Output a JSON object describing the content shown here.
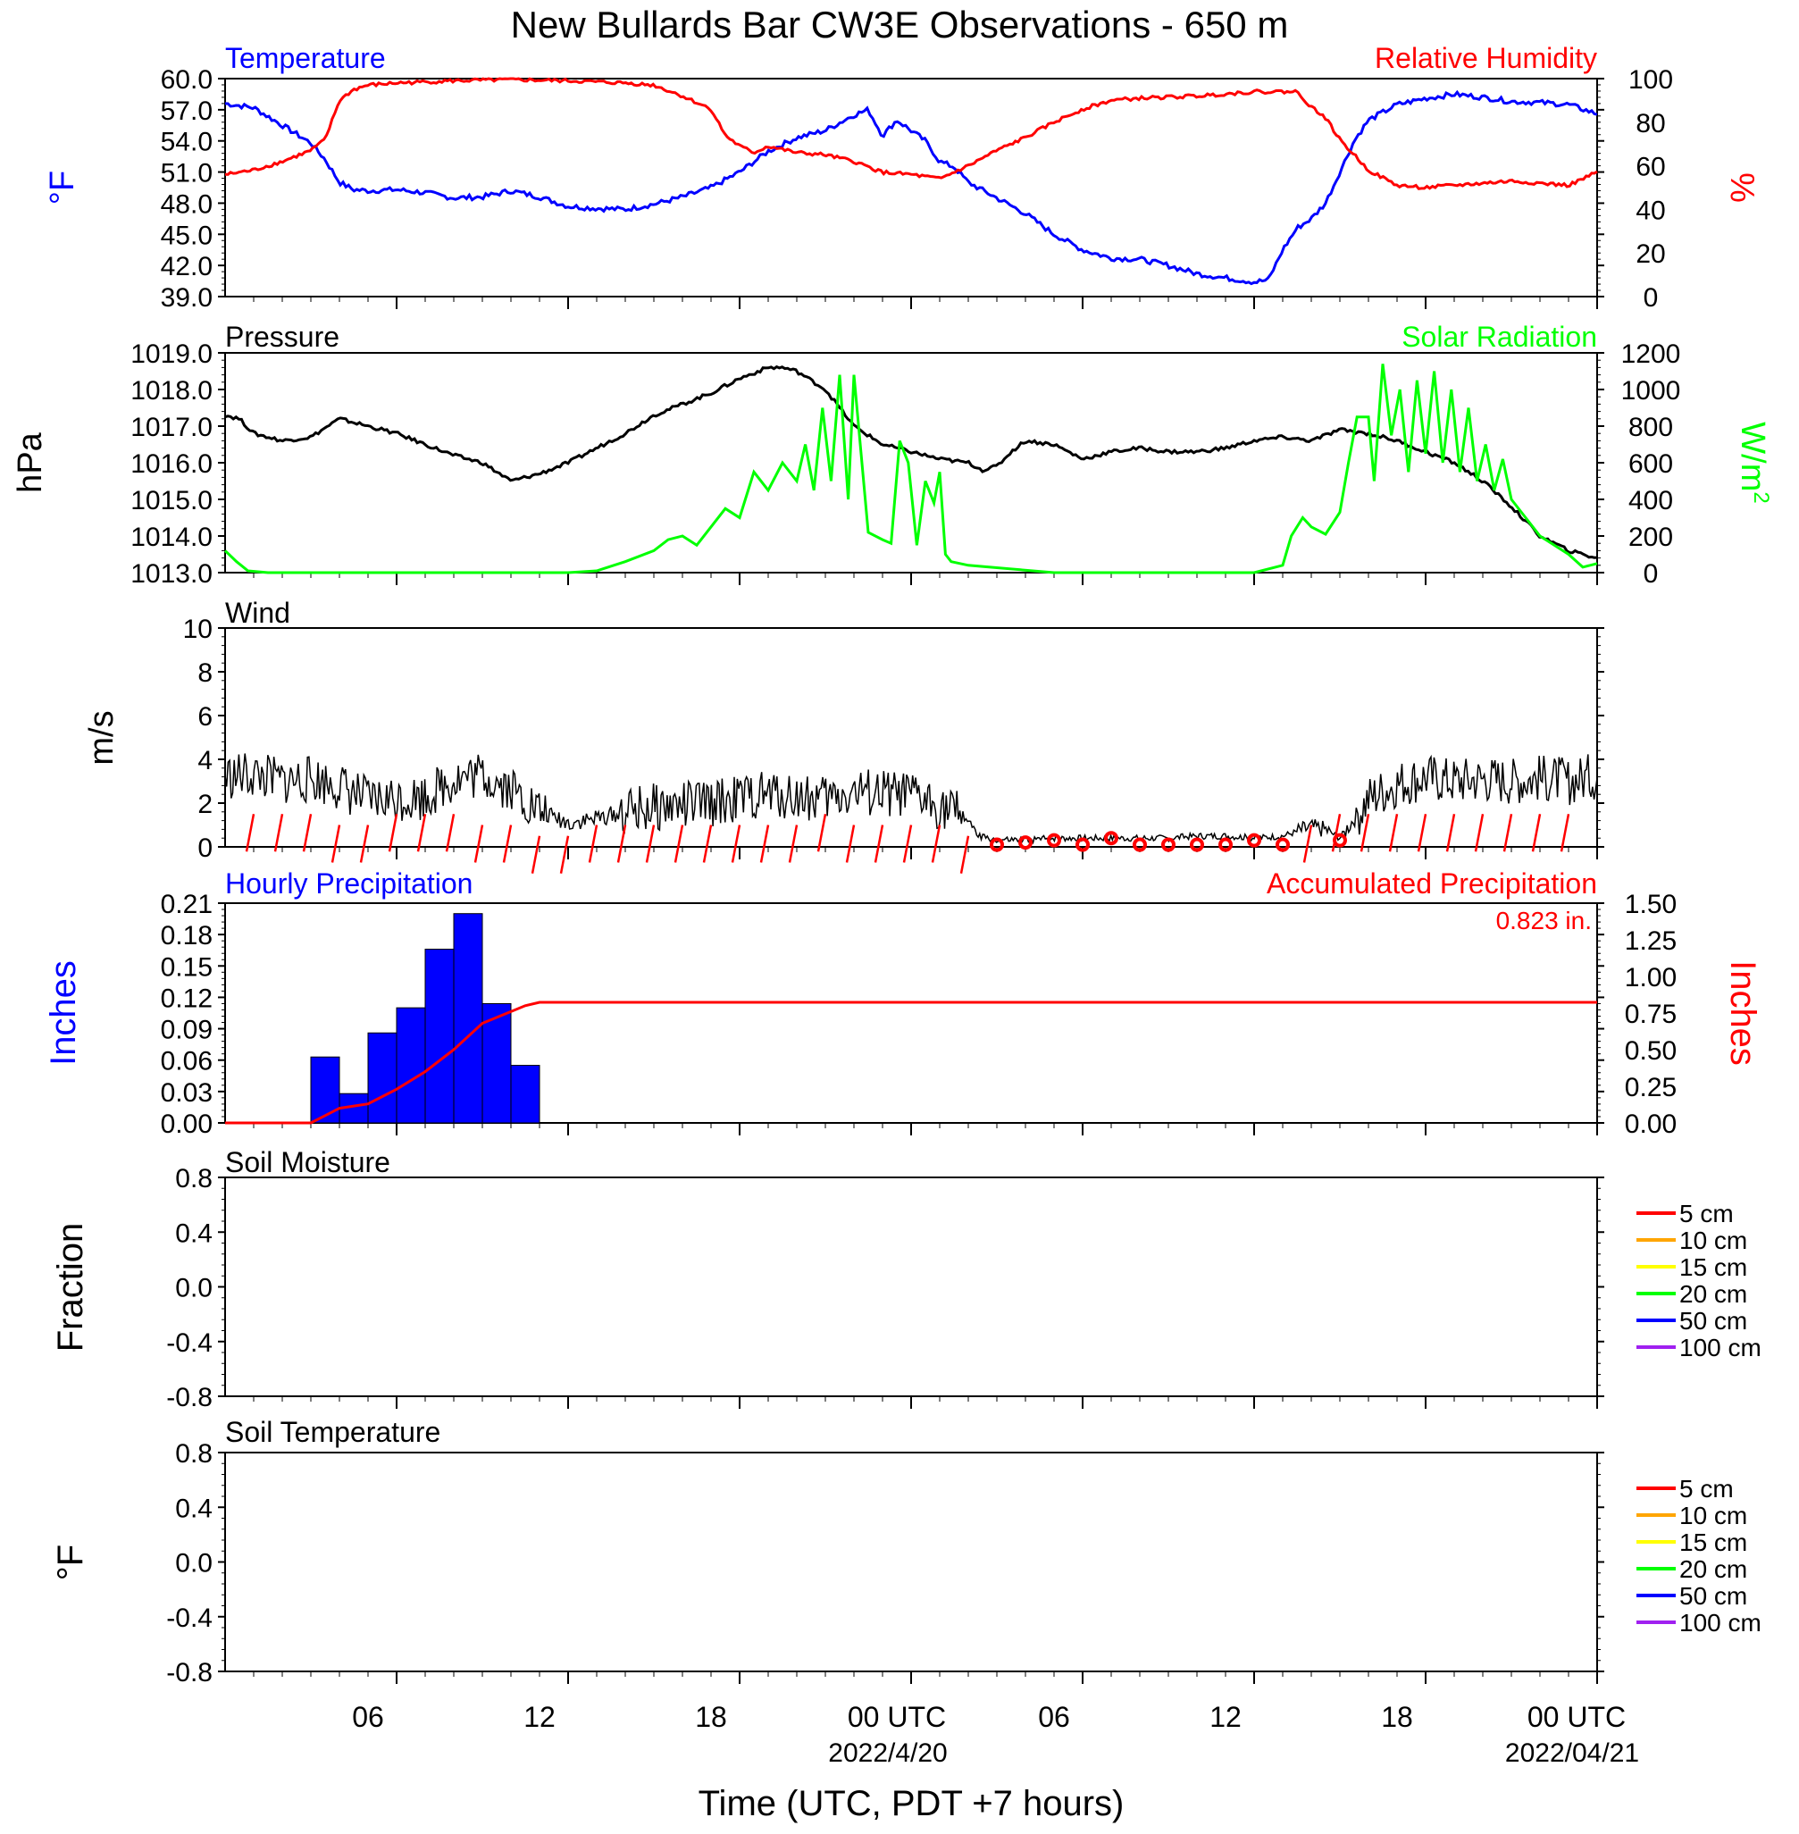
{
  "chart_data": {
    "title": "New Bullards Bar CW3E Observations - 650 m",
    "xlabel": "Time (UTC, PDT +7 hours)",
    "x_ticks": [
      "06",
      "12",
      "18",
      "00 UTC",
      "06",
      "12",
      "18",
      "00 UTC"
    ],
    "x_dates": [
      "2022/4/20",
      "2022/04/21"
    ],
    "colors": {
      "temperature": "#0000ff",
      "humidity": "#ff0000",
      "pressure": "#000000",
      "solar": "#00ff00",
      "wind": "#000000",
      "barb": "#ff0000",
      "precip_bar": "#0000ff",
      "accum": "#ff0000"
    },
    "panels": [
      {
        "type": "line",
        "title_left": "Temperature",
        "title_right": "Relative Humidity",
        "ylabel_left": "°F",
        "ylabel_right": "%",
        "yticks_left": [
          "60.0",
          "57.0",
          "54.0",
          "51.0",
          "48.0",
          "45.0",
          "42.0",
          "39.0"
        ],
        "yticks_right": [
          "100",
          "80",
          "60",
          "40",
          "20",
          "0"
        ],
        "ylim_left": [
          39,
          60
        ],
        "ylim_right": [
          0,
          100
        ],
        "series": [
          {
            "name": "Temperature",
            "axis": "left",
            "x": [
              0,
              1,
              2,
              3,
              3.5,
              4,
              4.5,
              5,
              6,
              7,
              8,
              9,
              10,
              11,
              12,
              13,
              14,
              15,
              16,
              17,
              18,
              19,
              20,
              21,
              22,
              22.5,
              23,
              23.5,
              24,
              24.5,
              25,
              25.5,
              26,
              27,
              28,
              29,
              30,
              31,
              32,
              33,
              34,
              35,
              36,
              36.5,
              37,
              37.5,
              38,
              38.5,
              39,
              39.5,
              40,
              41,
              42,
              43,
              44,
              45,
              46,
              47,
              48
            ],
            "y": [
              57.6,
              57.2,
              55.5,
              53.8,
              52.2,
              50.0,
              49.3,
              49.2,
              49.3,
              49.0,
              48.5,
              48.6,
              49.2,
              48.6,
              47.7,
              47.5,
              47.4,
              47.9,
              48.6,
              49.5,
              51.0,
              53.0,
              54.3,
              55.0,
              56.5,
              57.0,
              54.5,
              56.0,
              55.0,
              54.0,
              52.0,
              51.5,
              50.0,
              48.5,
              47.0,
              45.0,
              43.5,
              42.7,
              42.6,
              42.0,
              41.2,
              40.8,
              40.4,
              40.6,
              43.5,
              45.6,
              46.5,
              48.0,
              51.0,
              54.0,
              56.0,
              57.5,
              58.1,
              58.5,
              58.2,
              57.8,
              57.7,
              57.5,
              56.6
            ]
          },
          {
            "name": "Relative Humidity",
            "axis": "right",
            "x": [
              0,
              1,
              2,
              3,
              3.5,
              4,
              4.5,
              5,
              6,
              8,
              10,
              12,
              14,
              15,
              16,
              17,
              17.5,
              18,
              18.5,
              19,
              20,
              21,
              22,
              23,
              24,
              25,
              26,
              27,
              28,
              29,
              30,
              31,
              32,
              34,
              36,
              37,
              37.5,
              38,
              38.5,
              39,
              40,
              41,
              42,
              43,
              44,
              45,
              46,
              47,
              48
            ],
            "y": [
              56,
              58,
              62,
              67,
              72,
              90,
              95,
              97,
              98,
              99,
              99.5,
              99,
              98,
              97,
              92,
              86,
              74,
              69,
              66,
              69,
              66,
              65,
              62,
              57,
              56,
              54,
              60,
              67,
              73,
              80,
              86,
              90,
              91,
              92,
              94,
              94,
              94,
              87,
              82,
              72,
              58,
              51,
              50,
              51,
              52,
              53,
              52,
              51,
              57
            ]
          },
          {
            "name": "",
            "axis": "none",
            "x": [],
            "y": []
          }
        ]
      },
      {
        "type": "line",
        "title_left": "Pressure",
        "title_right": "Solar Radiation",
        "ylabel_left": "hPa",
        "ylabel_right": "W/m",
        "ylabel_right_sup": "2",
        "yticks_left": [
          "1019.0",
          "1018.0",
          "1017.0",
          "1016.0",
          "1015.0",
          "1014.0",
          "1013.0"
        ],
        "yticks_right": [
          "1200",
          "1000",
          "800",
          "600",
          "400",
          "200",
          "0"
        ],
        "ylim_left": [
          1013,
          1019
        ],
        "ylim_right": [
          0,
          1200
        ],
        "series": [
          {
            "name": "Pressure",
            "axis": "left",
            "x": [
              0,
              0.5,
              1,
              2,
              3,
              4,
              5,
              6,
              7,
              8,
              9,
              10,
              11,
              12,
              13,
              14,
              15,
              16,
              17,
              18,
              19,
              19.5,
              20,
              21,
              22,
              23,
              24,
              25,
              26,
              26.5,
              27,
              27.5,
              28,
              29,
              30,
              31,
              32,
              33,
              34,
              35,
              36,
              37,
              38,
              39,
              40,
              41,
              42,
              43,
              44,
              45,
              46,
              47,
              48
            ],
            "y": [
              1017.3,
              1017.2,
              1016.8,
              1016.6,
              1016.7,
              1017.2,
              1017.0,
              1016.8,
              1016.5,
              1016.2,
              1016.0,
              1015.5,
              1015.7,
              1016.0,
              1016.4,
              1016.8,
              1017.3,
              1017.6,
              1017.9,
              1018.3,
              1018.6,
              1018.6,
              1018.5,
              1018.0,
              1017.0,
              1016.5,
              1016.3,
              1016.1,
              1016.0,
              1015.8,
              1015.9,
              1016.3,
              1016.6,
              1016.5,
              1016.1,
              1016.3,
              1016.4,
              1016.3,
              1016.3,
              1016.4,
              1016.6,
              1016.7,
              1016.6,
              1016.9,
              1016.8,
              1016.6,
              1016.3,
              1016.0,
              1015.5,
              1014.8,
              1014.0,
              1013.6,
              1013.4
            ]
          },
          {
            "name": "Solar Radiation",
            "axis": "right",
            "x": [
              0,
              0.4,
              0.8,
              1.5,
              12,
              13,
              14,
              15,
              15.5,
              16,
              16.5,
              17,
              17.5,
              18,
              18.5,
              19,
              19.5,
              20,
              20.3,
              20.6,
              20.9,
              21.2,
              21.5,
              21.8,
              22,
              22.5,
              23,
              23.3,
              23.6,
              23.9,
              24.2,
              24.5,
              24.8,
              25,
              25.2,
              25.4,
              26,
              29,
              36,
              37,
              37.3,
              37.7,
              38,
              38.5,
              39,
              39.3,
              39.6,
              40,
              40.2,
              40.5,
              40.8,
              41.1,
              41.4,
              41.7,
              42,
              42.3,
              42.6,
              42.9,
              43.2,
              43.5,
              43.8,
              44.1,
              44.4,
              44.7,
              45,
              45.5,
              46,
              46.5,
              47,
              47.5,
              48
            ],
            "y": [
              120,
              60,
              10,
              0,
              0,
              10,
              60,
              120,
              180,
              200,
              150,
              250,
              350,
              300,
              550,
              450,
              600,
              500,
              700,
              450,
              900,
              500,
              1080,
              400,
              1080,
              220,
              180,
              160,
              720,
              600,
              150,
              500,
              380,
              550,
              100,
              60,
              40,
              0,
              0,
              40,
              200,
              300,
              250,
              210,
              330,
              600,
              850,
              850,
              500,
              1140,
              750,
              1000,
              550,
              1050,
              650,
              1100,
              600,
              1000,
              550,
              900,
              500,
              700,
              450,
              620,
              400,
              300,
              200,
              150,
              100,
              30,
              50
            ]
          },
          {
            "name": "",
            "axis": "none",
            "x": [],
            "y": []
          }
        ]
      },
      {
        "type": "line",
        "title_left": "Wind",
        "ylabel_left": "m/s",
        "yticks_left": [
          "10",
          "8",
          "6",
          "4",
          "2",
          "0"
        ],
        "ylim_left": [
          0,
          10
        ],
        "series": [
          {
            "name": "Wind",
            "axis": "left",
            "x": [
              0,
              1,
              2,
              3,
              4,
              5,
              6,
              7,
              8,
              9,
              10,
              11,
              12,
              13,
              14,
              15,
              16,
              17,
              18,
              19,
              20,
              21,
              22,
              23,
              24,
              25,
              26,
              26.3,
              27,
              28,
              29,
              30,
              31,
              32,
              33,
              34,
              35,
              36,
              37,
              38,
              38.5,
              39,
              40,
              41,
              42,
              43,
              44,
              45,
              46,
              47,
              48
            ],
            "y": [
              3.2,
              3.3,
              3.0,
              3.1,
              2.8,
              2.1,
              2.2,
              2.3,
              3.1,
              3.3,
              2.7,
              1.6,
              1.1,
              1.3,
              1.6,
              1.8,
              1.9,
              2.0,
              2.2,
              2.4,
              2.3,
              2.2,
              2.5,
              2.4,
              2.3,
              1.9,
              1.3,
              0.5,
              0.3,
              0.3,
              0.4,
              0.4,
              0.4,
              0.4,
              0.4,
              0.5,
              0.5,
              0.4,
              0.5,
              0.9,
              0.8,
              0.4,
              2.2,
              2.9,
              3.2,
              3.0,
              3.1,
              3.0,
              3.1,
              3.0,
              3.2
            ]
          },
          {
            "name": "",
            "axis": "none",
            "x": [],
            "y": []
          },
          {
            "name": "",
            "axis": "none",
            "x": [],
            "y": []
          }
        ]
      },
      {
        "type": "bar",
        "title_left": "Hourly Precipitation",
        "title_right": "Accumulated Precipitation",
        "annotation": "0.823 in.",
        "ylabel_left": "Inches",
        "ylabel_right": "Inches",
        "yticks_left": [
          "0.21",
          "0.18",
          "0.15",
          "0.12",
          "0.09",
          "0.06",
          "0.03",
          "0.00"
        ],
        "yticks_right": [
          "1.50",
          "1.25",
          "1.00",
          "0.75",
          "0.50",
          "0.25",
          "0.00"
        ],
        "ylim_left": [
          0,
          0.21
        ],
        "ylim_right": [
          0,
          1.5
        ],
        "bars": {
          "x": [
            3,
            4,
            5,
            6,
            7,
            8,
            9,
            10
          ],
          "values": [
            0.063,
            0.028,
            0.086,
            0.11,
            0.166,
            0.2,
            0.114,
            0.055
          ]
        },
        "series": [
          {
            "name": "Accumulated Precipitation",
            "axis": "right",
            "x": [
              0,
              3,
              3.5,
              4,
              5,
              5.5,
              6,
              7,
              8,
              9,
              10,
              10.5,
              11,
              48
            ],
            "y": [
              0,
              0,
              0.05,
              0.1,
              0.13,
              0.18,
              0.23,
              0.35,
              0.5,
              0.68,
              0.76,
              0.8,
              0.823,
              0.823
            ]
          },
          {
            "name": "",
            "axis": "none",
            "x": [],
            "y": []
          },
          {
            "name": "",
            "axis": "none",
            "x": [],
            "y": []
          }
        ]
      },
      {
        "type": "line",
        "title_left": "Soil Moisture",
        "ylabel_left": "Fraction",
        "yticks_left": [
          "0.8",
          "0.4",
          "0.0",
          "-0.4",
          "-0.8"
        ],
        "ylim_left": [
          -1,
          1
        ],
        "legend": [
          {
            "label": "5 cm",
            "color": "#ff0000"
          },
          {
            "label": "10 cm",
            "color": "#ffa500"
          },
          {
            "label": "15 cm",
            "color": "#ffff00"
          },
          {
            "label": "20 cm",
            "color": "#00ff00"
          },
          {
            "label": "50 cm",
            "color": "#0000ff"
          },
          {
            "label": "100 cm",
            "color": "#a020f0"
          }
        ],
        "series": []
      },
      {
        "type": "line",
        "title_left": "Soil Temperature",
        "ylabel_left": "°F",
        "yticks_left": [
          "0.8",
          "0.4",
          "0.0",
          "-0.4",
          "-0.8"
        ],
        "ylim_left": [
          -1,
          1
        ],
        "legend": [
          {
            "label": "5 cm",
            "color": "#ff0000"
          },
          {
            "label": "10 cm",
            "color": "#ffa500"
          },
          {
            "label": "15 cm",
            "color": "#ffff00"
          },
          {
            "label": "20 cm",
            "color": "#00ff00"
          },
          {
            "label": "50 cm",
            "color": "#0000ff"
          },
          {
            "label": "100 cm",
            "color": "#a020f0"
          }
        ],
        "series": []
      }
    ],
    "wind_barbs": {
      "x": [
        1,
        2,
        3,
        4,
        5,
        6,
        7,
        8,
        9,
        10,
        11,
        12,
        13,
        14,
        15,
        16,
        17,
        18,
        19,
        20,
        21,
        22,
        23,
        24,
        25,
        26
      ],
      "speed": [
        3,
        3,
        3,
        2,
        2,
        3,
        3,
        3,
        2,
        2,
        1,
        1,
        2,
        2,
        2,
        2,
        2,
        2,
        2,
        2,
        3,
        2,
        2,
        2,
        2,
        1
      ]
    },
    "wind_barbs_day2": {
      "x": [
        38,
        39,
        40,
        41,
        42,
        43,
        44,
        45,
        46,
        47
      ],
      "speed": [
        2,
        3,
        3,
        3,
        3,
        3,
        3,
        3,
        3,
        3
      ]
    },
    "calm_circles": {
      "x": [
        27,
        28,
        29,
        30,
        31,
        32,
        33,
        34,
        35,
        36,
        37,
        39
      ],
      "y": [
        0.1,
        0.2,
        0.3,
        0.1,
        0.4,
        0.1,
        0.1,
        0.1,
        0.1,
        0.3,
        0.1,
        0.3
      ]
    }
  }
}
